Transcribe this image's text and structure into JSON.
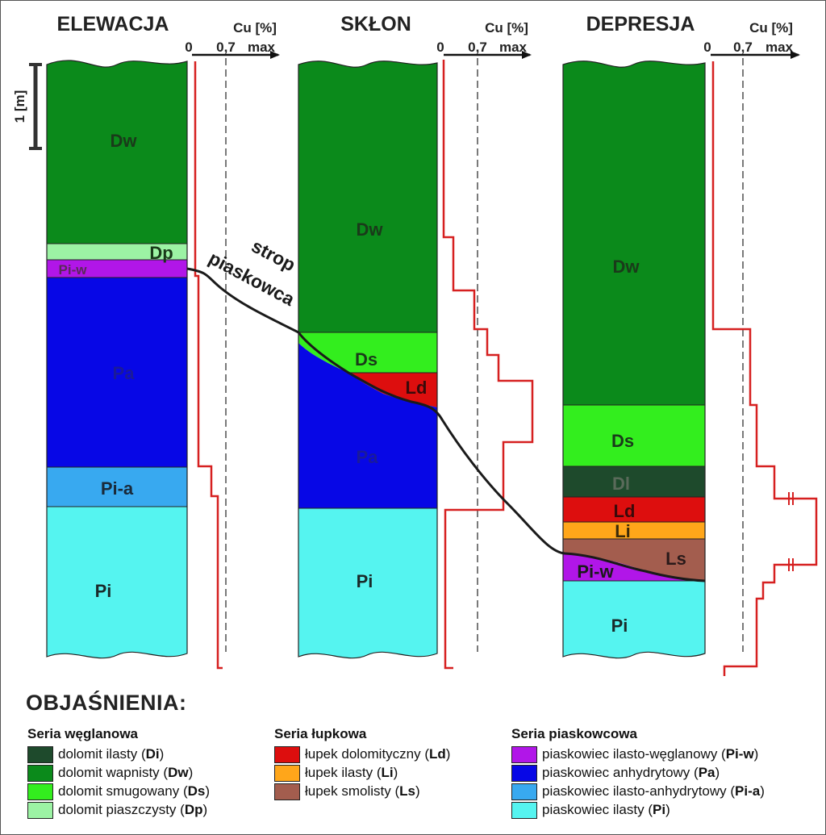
{
  "columns": [
    {
      "title": "ELEWACJA"
    },
    {
      "title": "SKŁON"
    },
    {
      "title": "DEPRESJA"
    }
  ],
  "cu_axis": {
    "label": "Cu [%]",
    "ticks": [
      "0",
      "0,7",
      "max"
    ]
  },
  "scale": {
    "label": "1 [m]"
  },
  "annotation": {
    "line1": "strop",
    "line2": "piaskowca"
  },
  "layers": {
    "elewacja": [
      "Dw",
      "Dp",
      "Pi-w",
      "Pa",
      "Pi-a",
      "Pi"
    ],
    "sklon": [
      "Dw",
      "Ds",
      "Ld",
      "Pa",
      "Pi"
    ],
    "depresja": [
      "Dw",
      "Ds",
      "Dl",
      "Ld",
      "Li",
      "Ls",
      "Pi-w",
      "Pi"
    ]
  },
  "colors": {
    "Dw": "#0b8a1b",
    "Ds": "#33ee1e",
    "Dp": "#9cf3a4",
    "Di": "#1e4a2c",
    "Ld": "#dd0e0e",
    "Li": "#ffa61a",
    "Ls": "#a35d4e",
    "Piw": "#b116e8",
    "Pa": "#0707e6",
    "Pia": "#38a9f0",
    "Pi": "#55f4f0",
    "cu_line": "#d62020"
  },
  "legend": {
    "title": "OBJAŚNIENIA:",
    "series": [
      {
        "title": "Seria węglanowa",
        "items": [
          {
            "text": "dolomit ilasty",
            "code": "Di",
            "color": "#1e4a2c"
          },
          {
            "text": "dolomit wapnisty",
            "code": "Dw",
            "color": "#0b8a1b"
          },
          {
            "text": "dolomit smugowany",
            "code": "Ds",
            "color": "#33ee1e"
          },
          {
            "text": "dolomit piaszczysty",
            "code": "Dp",
            "color": "#9cf3a4"
          }
        ]
      },
      {
        "title": "Seria łupkowa",
        "items": [
          {
            "text": "łupek dolomityczny",
            "code": "Ld",
            "color": "#dd0e0e"
          },
          {
            "text": "łupek ilasty",
            "code": "Li",
            "color": "#ffa61a"
          },
          {
            "text": "łupek smolisty",
            "code": "Ls",
            "color": "#a35d4e"
          }
        ]
      },
      {
        "title": "Seria piaskowcowa",
        "items": [
          {
            "text": "piaskowiec ilasto-węglanowy",
            "code": "Pi-w",
            "color": "#b116e8"
          },
          {
            "text": "piaskowiec anhydrytowy",
            "code": "Pa",
            "color": "#0707e6"
          },
          {
            "text": "piaskowiec ilasto-anhydrytowy",
            "code": "Pi-a",
            "color": "#38a9f0"
          },
          {
            "text": "piaskowiec ilasty",
            "code": "Pi",
            "color": "#55f4f0"
          }
        ]
      }
    ]
  }
}
